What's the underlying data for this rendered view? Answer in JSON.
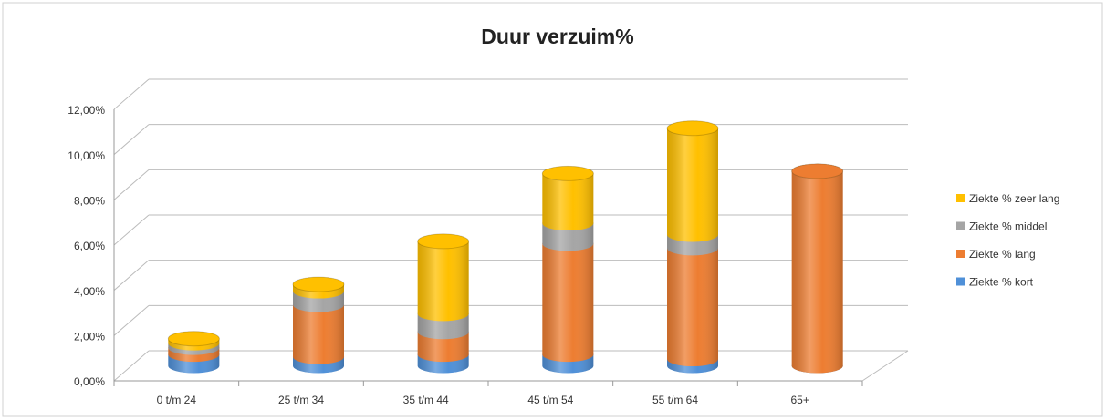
{
  "chart_data": {
    "type": "bar3d_stacked_cylinder",
    "title": "Duur verzuim%",
    "categories": [
      "0 t/m 24",
      "25 t/m 34",
      "35 t/m 44",
      "45 t/m 54",
      "55 t/m 64",
      "65+"
    ],
    "series": [
      {
        "name": "Ziekte % kort",
        "color": "#4f90d8",
        "values": [
          0.5,
          0.4,
          0.5,
          0.5,
          0.3,
          0
        ]
      },
      {
        "name": "Ziekte % lang",
        "color": "#ed7d31",
        "values": [
          0.3,
          2.3,
          1.0,
          4.9,
          4.9,
          8.6
        ]
      },
      {
        "name": "Ziekte % middel",
        "color": "#a5a5a5",
        "values": [
          0.2,
          0.6,
          0.8,
          0.9,
          0.6,
          0
        ]
      },
      {
        "name": "Ziekte % zeer lang",
        "color": "#ffc000",
        "values": [
          0.2,
          0.3,
          3.2,
          2.2,
          4.7,
          0
        ]
      }
    ],
    "ylim": [
      0,
      12
    ],
    "yticks": [
      {
        "value": 0,
        "label": "0,00%"
      },
      {
        "value": 2,
        "label": "2,00%"
      },
      {
        "value": 4,
        "label": "4,00%"
      },
      {
        "value": 6,
        "label": "6,00%"
      },
      {
        "value": 8,
        "label": "8,00%"
      },
      {
        "value": 10,
        "label": "10,00%"
      },
      {
        "value": 12,
        "label": "12,00%"
      }
    ],
    "grid": true,
    "legend": "right"
  }
}
